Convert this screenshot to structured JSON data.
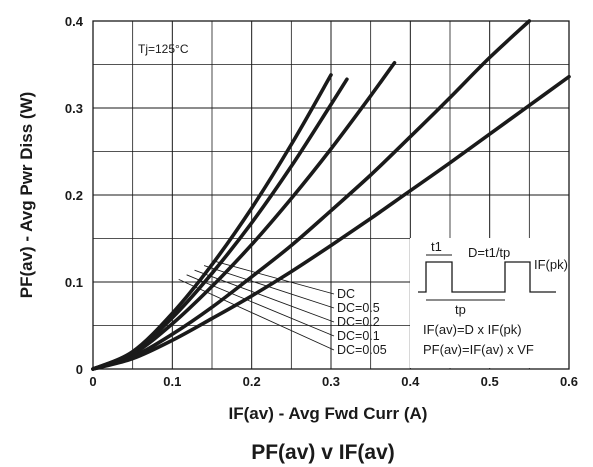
{
  "chart_data": {
    "type": "line",
    "title": "PF(av) v IF(av)",
    "xlabel": "IF(av) - Avg Fwd Curr (A)",
    "ylabel": "PF(av) - Avg Pwr Diss (W)",
    "xlim": [
      0,
      0.6
    ],
    "ylim": [
      0,
      0.4
    ],
    "x_ticks": [
      "0",
      "0.1",
      "0.2",
      "0.3",
      "0.4",
      "0.5",
      "0.6"
    ],
    "y_ticks": [
      "0",
      "0.1",
      "0.2",
      "0.3",
      "0.4"
    ],
    "grid": true,
    "annotation": "Tj=125°C",
    "series": [
      {
        "name": "DC",
        "x": [
          0,
          0.05,
          0.1,
          0.15,
          0.2,
          0.25,
          0.3,
          0.35,
          0.4,
          0.45,
          0.5,
          0.55,
          0.6
        ],
        "values": [
          0,
          0.012,
          0.033,
          0.058,
          0.084,
          0.112,
          0.142,
          0.173,
          0.205,
          0.237,
          0.27,
          0.303,
          0.336
        ]
      },
      {
        "name": "DC=0.5",
        "x": [
          0,
          0.05,
          0.1,
          0.15,
          0.2,
          0.25,
          0.3,
          0.35,
          0.4,
          0.45,
          0.5,
          0.55
        ],
        "values": [
          0,
          0.014,
          0.04,
          0.071,
          0.106,
          0.142,
          0.182,
          0.223,
          0.267,
          0.312,
          0.358,
          0.406
        ]
      },
      {
        "name": "DC=0.2",
        "x": [
          0,
          0.05,
          0.1,
          0.15,
          0.2,
          0.25,
          0.3,
          0.35,
          0.38
        ],
        "values": [
          0,
          0.017,
          0.052,
          0.095,
          0.143,
          0.196,
          0.253,
          0.314,
          0.352
        ]
      },
      {
        "name": "DC=0.1",
        "x": [
          0,
          0.05,
          0.1,
          0.15,
          0.2,
          0.25,
          0.3,
          0.32
        ],
        "values": [
          0,
          0.019,
          0.059,
          0.11,
          0.168,
          0.233,
          0.304,
          0.333
        ]
      },
      {
        "name": "DC=0.05",
        "x": [
          0,
          0.05,
          0.1,
          0.15,
          0.2,
          0.25,
          0.3
        ],
        "values": [
          0,
          0.02,
          0.064,
          0.12,
          0.185,
          0.258,
          0.338
        ]
      }
    ],
    "inset": {
      "t1": "t1",
      "tp": "tp",
      "duty": "D=t1/tp",
      "ipk": "IF(pk)",
      "eq1": "IF(av)=D x IF(pk)",
      "eq2": "PF(av)=IF(av) x VF"
    },
    "colors": {
      "line": "#1a1a1a",
      "grid": "#1a1a1a",
      "background": "#ffffff"
    }
  }
}
